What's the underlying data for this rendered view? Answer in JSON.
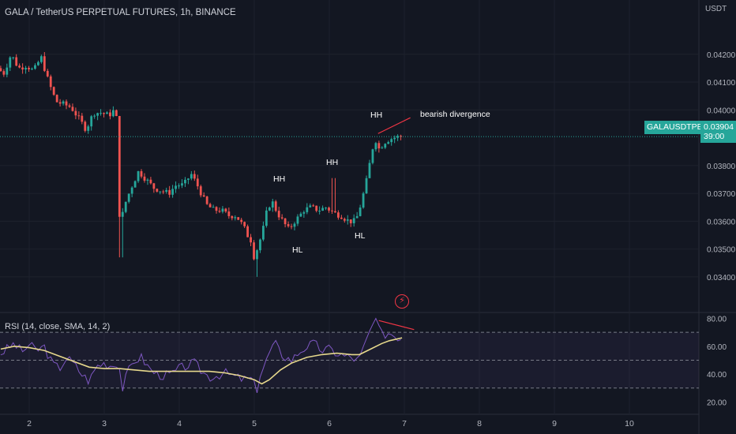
{
  "header": {
    "title": "GALA / TetherUS PERPETUAL FUTURES, 1h, BINANCE",
    "price_unit": "USDT"
  },
  "price_tag": {
    "symbol": "GALAUSDTPERP",
    "last_price": "0.03904",
    "countdown": "39:00"
  },
  "annotations": {
    "bearish": "bearish divergence",
    "hh1": "HH",
    "hh2": "HH",
    "hh3": "HH",
    "hl1": "HL",
    "hl2": "HL"
  },
  "rsi_panel": {
    "label": "RSI (14, close, SMA, 14, 2)"
  },
  "colors": {
    "background": "#131722",
    "up": "#26a69a",
    "down": "#ef5350",
    "rsi_line": "#7e57c2",
    "rsi_ma": "#e6d88c",
    "trendline": "#f23645"
  },
  "chart_data": [
    {
      "type": "candlestick",
      "title": "GALA / TetherUS PERPETUAL FUTURES, 1h, BINANCE",
      "x_ticks": [
        "2",
        "3",
        "4",
        "5",
        "6",
        "7",
        "8",
        "9",
        "10"
      ],
      "y_ticks": [
        "0.04200",
        "0.04100",
        "0.04000",
        "0.03800",
        "0.03700",
        "0.03600",
        "0.03500",
        "0.03400"
      ],
      "ylim": [
        0.0334,
        0.0431
      ],
      "xlim": [
        1.62,
        10.5
      ],
      "last_price": 0.03904,
      "anchors": [
        [
          1.62,
          0.0415
        ],
        [
          1.7,
          0.0413
        ],
        [
          1.8,
          0.042
        ],
        [
          1.9,
          0.0415
        ],
        [
          2.0,
          0.0416
        ],
        [
          2.1,
          0.0414
        ],
        [
          2.2,
          0.0419
        ],
        [
          2.3,
          0.041
        ],
        [
          2.4,
          0.0403
        ],
        [
          2.5,
          0.0402
        ],
        [
          2.6,
          0.0401
        ],
        [
          2.7,
          0.0397
        ],
        [
          2.8,
          0.0393
        ],
        [
          2.9,
          0.0399
        ],
        [
          3.0,
          0.0399
        ],
        [
          3.1,
          0.0398
        ],
        [
          3.18,
          0.04
        ],
        [
          3.22,
          0.0395
        ],
        [
          3.25,
          0.0356
        ],
        [
          3.3,
          0.0365
        ],
        [
          3.4,
          0.0372
        ],
        [
          3.5,
          0.0378
        ],
        [
          3.6,
          0.0375
        ],
        [
          3.7,
          0.0372
        ],
        [
          3.8,
          0.0371
        ],
        [
          3.9,
          0.037
        ],
        [
          4.0,
          0.0373
        ],
        [
          4.1,
          0.0373
        ],
        [
          4.2,
          0.0377
        ],
        [
          4.3,
          0.0372
        ],
        [
          4.4,
          0.0366
        ],
        [
          4.5,
          0.0364
        ],
        [
          4.6,
          0.0364
        ],
        [
          4.7,
          0.0362
        ],
        [
          4.8,
          0.0362
        ],
        [
          4.9,
          0.0358
        ],
        [
          4.95,
          0.0355
        ],
        [
          5.0,
          0.0353
        ],
        [
          5.03,
          0.0347
        ],
        [
          5.08,
          0.035
        ],
        [
          5.15,
          0.0356
        ],
        [
          5.22,
          0.0365
        ],
        [
          5.28,
          0.0367
        ],
        [
          5.35,
          0.0363
        ],
        [
          5.42,
          0.036
        ],
        [
          5.5,
          0.0357
        ],
        [
          5.58,
          0.036
        ],
        [
          5.65,
          0.0362
        ],
        [
          5.7,
          0.0364
        ],
        [
          5.8,
          0.0365
        ],
        [
          5.9,
          0.0364
        ],
        [
          6.0,
          0.0365
        ],
        [
          6.1,
          0.0363
        ],
        [
          6.2,
          0.0362
        ],
        [
          6.3,
          0.036
        ],
        [
          6.37,
          0.036
        ],
        [
          6.42,
          0.0362
        ],
        [
          6.48,
          0.0368
        ],
        [
          6.55,
          0.0376
        ],
        [
          6.6,
          0.0384
        ],
        [
          6.65,
          0.039
        ],
        [
          6.7,
          0.0386
        ],
        [
          6.8,
          0.0389
        ],
        [
          6.9,
          0.039
        ],
        [
          6.97,
          0.03904
        ]
      ]
    },
    {
      "type": "line",
      "title": "RSI (14, close, SMA, 14, 2)",
      "y_ticks": [
        "80.00",
        "60.00",
        "40.00",
        "20.00"
      ],
      "ylim": [
        14,
        82
      ],
      "bands": [
        70,
        50,
        30
      ],
      "series": [
        {
          "name": "RSI",
          "points": [
            [
              1.62,
              55
            ],
            [
              1.7,
              58
            ],
            [
              1.8,
              62
            ],
            [
              1.9,
              56
            ],
            [
              2.0,
              61
            ],
            [
              2.1,
              57
            ],
            [
              2.2,
              60
            ],
            [
              2.3,
              48
            ],
            [
              2.4,
              44
            ],
            [
              2.5,
              52
            ],
            [
              2.6,
              47
            ],
            [
              2.7,
              40
            ],
            [
              2.8,
              35
            ],
            [
              2.9,
              46
            ],
            [
              3.0,
              48
            ],
            [
              3.1,
              46
            ],
            [
              3.18,
              49
            ],
            [
              3.22,
              40
            ],
            [
              3.25,
              28
            ],
            [
              3.3,
              40
            ],
            [
              3.4,
              50
            ],
            [
              3.5,
              52
            ],
            [
              3.6,
              44
            ],
            [
              3.7,
              40
            ],
            [
              3.8,
              39
            ],
            [
              3.9,
              40
            ],
            [
              4.0,
              44
            ],
            [
              4.1,
              46
            ],
            [
              4.2,
              48
            ],
            [
              4.3,
              42
            ],
            [
              4.4,
              38
            ],
            [
              4.5,
              39
            ],
            [
              4.6,
              41
            ],
            [
              4.7,
              39
            ],
            [
              4.8,
              37
            ],
            [
              4.9,
              36
            ],
            [
              4.95,
              37
            ],
            [
              5.0,
              32
            ],
            [
              5.03,
              28
            ],
            [
              5.08,
              40
            ],
            [
              5.15,
              48
            ],
            [
              5.22,
              58
            ],
            [
              5.28,
              62
            ],
            [
              5.35,
              55
            ],
            [
              5.42,
              52
            ],
            [
              5.5,
              50
            ],
            [
              5.58,
              55
            ],
            [
              5.65,
              58
            ],
            [
              5.7,
              60
            ],
            [
              5.8,
              62
            ],
            [
              5.9,
              57
            ],
            [
              6.0,
              58
            ],
            [
              6.1,
              55
            ],
            [
              6.2,
              53
            ],
            [
              6.3,
              52
            ],
            [
              6.37,
              50
            ],
            [
              6.42,
              53
            ],
            [
              6.48,
              62
            ],
            [
              6.55,
              72
            ],
            [
              6.6,
              78
            ],
            [
              6.65,
              75
            ],
            [
              6.7,
              68
            ],
            [
              6.8,
              70
            ],
            [
              6.9,
              67
            ],
            [
              6.97,
              66
            ]
          ]
        },
        {
          "name": "RSI-based MA",
          "points": [
            [
              1.62,
              58
            ],
            [
              1.8,
              60
            ],
            [
              2.0,
              59
            ],
            [
              2.2,
              57
            ],
            [
              2.4,
              53
            ],
            [
              2.6,
              49
            ],
            [
              2.8,
              45
            ],
            [
              3.0,
              44
            ],
            [
              3.2,
              44
            ],
            [
              3.4,
              43
            ],
            [
              3.6,
              42
            ],
            [
              3.8,
              42
            ],
            [
              4.0,
              42
            ],
            [
              4.2,
              42
            ],
            [
              4.4,
              42
            ],
            [
              4.6,
              41
            ],
            [
              4.8,
              39
            ],
            [
              5.0,
              36
            ],
            [
              5.1,
              33
            ],
            [
              5.2,
              36
            ],
            [
              5.35,
              43
            ],
            [
              5.5,
              48
            ],
            [
              5.7,
              52
            ],
            [
              5.9,
              54
            ],
            [
              6.1,
              55
            ],
            [
              6.3,
              54
            ],
            [
              6.4,
              54
            ],
            [
              6.55,
              58
            ],
            [
              6.7,
              62
            ],
            [
              6.8,
              64
            ],
            [
              6.97,
              66
            ]
          ]
        }
      ]
    }
  ]
}
